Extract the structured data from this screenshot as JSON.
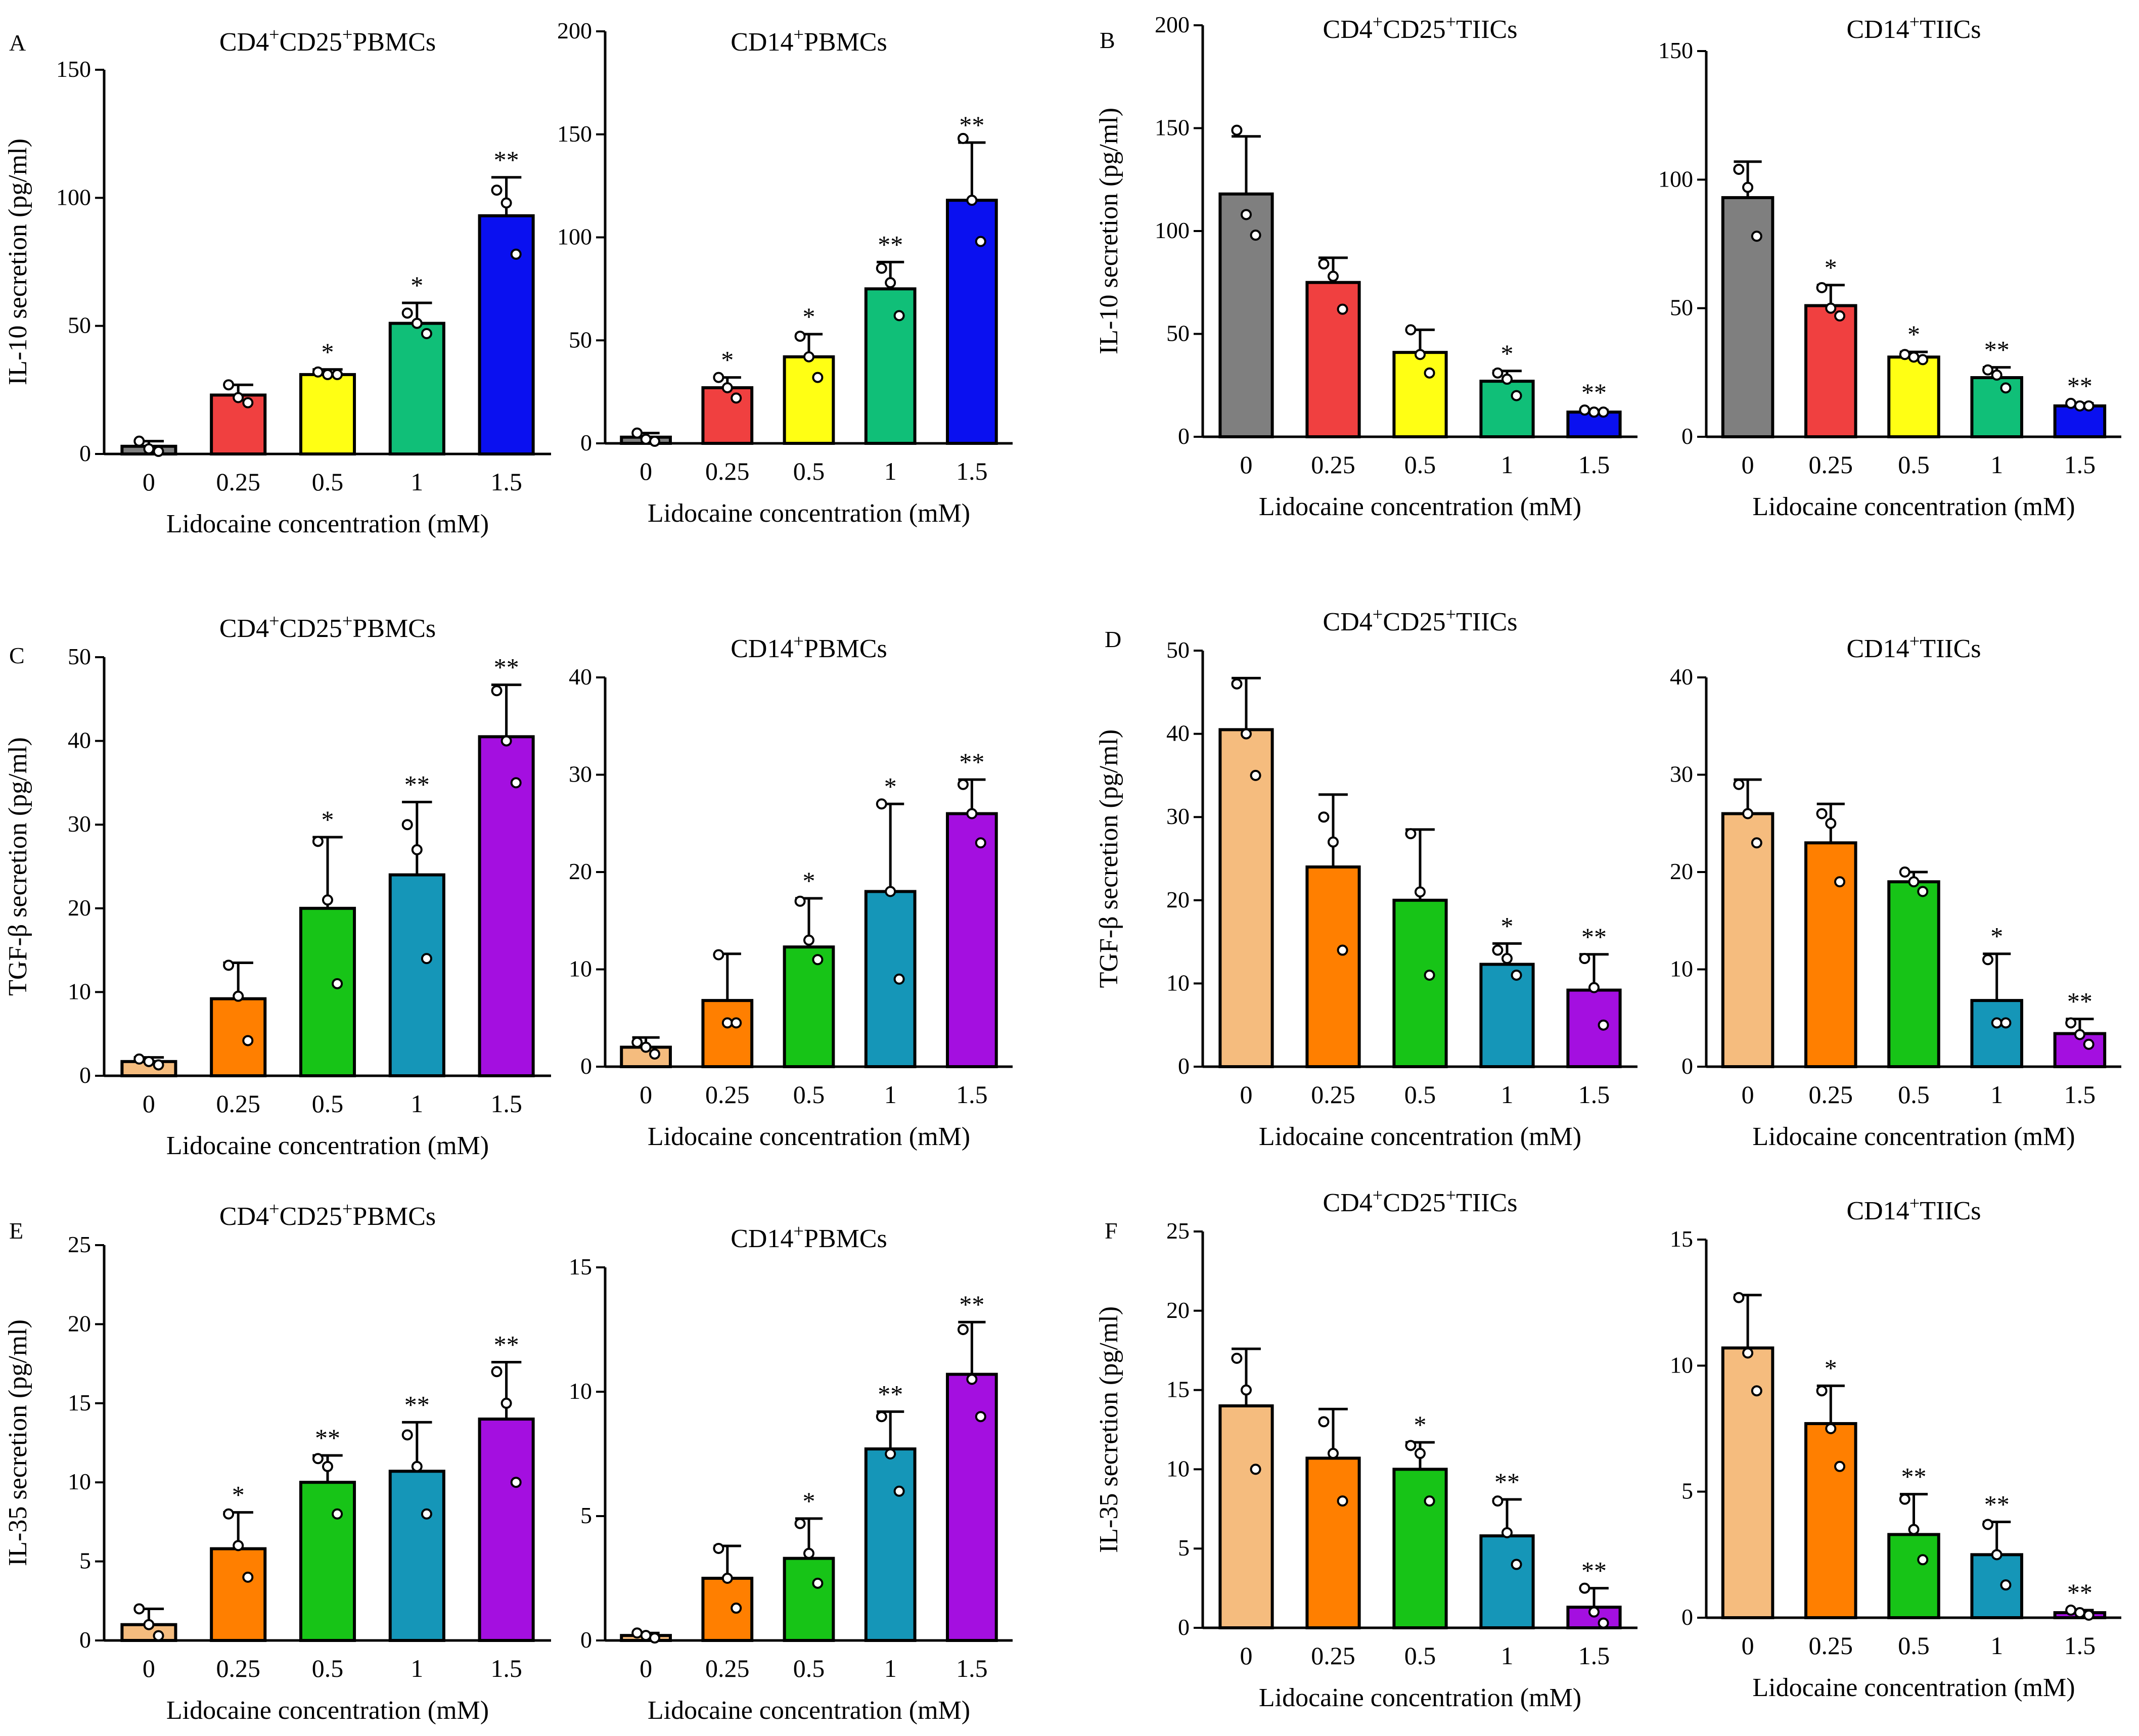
{
  "figure": {
    "xlabel": "Lidocaine concentration (mM)",
    "categories": [
      "0",
      "0.25",
      "0.5",
      "1",
      "1.5"
    ],
    "colors": {
      "set1": [
        "#7f7f7f",
        "#f04040",
        "#ffff14",
        "#10bf78",
        "#0a10f0"
      ],
      "set2": [
        "#f5bc7e",
        "#ff7f00",
        "#17c417",
        "#1596b8",
        "#a40fe0"
      ]
    }
  },
  "chart_data": [
    {
      "type": "bar",
      "panel": "A",
      "position": "A-left",
      "title": "CD4⁺CD25⁺PBMCs",
      "xlabel": "Lidocaine concentration (mM)",
      "ylabel": "IL-10 secretion (pg/ml)",
      "categories": [
        "0",
        "0.25",
        "0.5",
        "1",
        "1.5"
      ],
      "values": [
        3,
        23,
        31,
        51,
        93
      ],
      "errors": [
        2,
        4,
        2,
        8,
        15
      ],
      "points": [
        [
          5,
          2,
          1
        ],
        [
          27,
          22,
          20
        ],
        [
          32,
          31,
          31
        ],
        [
          55,
          51,
          47
        ],
        [
          103,
          98,
          78
        ]
      ],
      "significance": [
        "",
        "",
        "*",
        "*",
        "**"
      ],
      "ylim": [
        0,
        150
      ],
      "yticks": [
        0,
        50,
        100,
        150
      ],
      "palette": "set1"
    },
    {
      "type": "bar",
      "panel": "",
      "position": "A-right",
      "title": "CD14⁺PBMCs",
      "xlabel": "Lidocaine concentration (mM)",
      "ylabel": "",
      "categories": [
        "0",
        "0.25",
        "0.5",
        "1",
        "1.5"
      ],
      "values": [
        3,
        27,
        42,
        75,
        118
      ],
      "errors": [
        2,
        5,
        11,
        13,
        28
      ],
      "points": [
        [
          5,
          2,
          1
        ],
        [
          32,
          27,
          22
        ],
        [
          52,
          42,
          32
        ],
        [
          85,
          78,
          62
        ],
        [
          148,
          118,
          98
        ]
      ],
      "significance": [
        "",
        "*",
        "*",
        "**",
        "**"
      ],
      "ylim": [
        0,
        200
      ],
      "yticks": [
        0,
        50,
        100,
        150,
        200
      ],
      "palette": "set1"
    },
    {
      "type": "bar",
      "panel": "B",
      "position": "B-left",
      "title": "CD4⁺CD25⁺TIICs",
      "xlabel": "Lidocaine concentration (mM)",
      "ylabel": "IL-10 secretion (pg/ml)",
      "categories": [
        "0",
        "0.25",
        "0.5",
        "1",
        "1.5"
      ],
      "values": [
        118,
        75,
        41,
        27,
        12
      ],
      "errors": [
        28,
        12,
        11,
        5,
        1
      ],
      "points": [
        [
          149,
          108,
          98
        ],
        [
          84,
          78,
          62
        ],
        [
          52,
          40,
          31
        ],
        [
          31,
          28,
          20
        ],
        [
          13,
          12,
          12
        ]
      ],
      "significance": [
        "",
        "",
        "",
        "*",
        "**"
      ],
      "ylim": [
        0,
        200
      ],
      "yticks": [
        0,
        50,
        100,
        150,
        200
      ],
      "palette": "set1"
    },
    {
      "type": "bar",
      "panel": "",
      "position": "B-right",
      "title": "CD14⁺TIICs",
      "xlabel": "Lidocaine concentration (mM)",
      "ylabel": "",
      "categories": [
        "0",
        "0.25",
        "0.5",
        "1",
        "1.5"
      ],
      "values": [
        93,
        51,
        31,
        23,
        12
      ],
      "errors": [
        14,
        8,
        2,
        4,
        1
      ],
      "points": [
        [
          104,
          97,
          78
        ],
        [
          58,
          50,
          47
        ],
        [
          32,
          31,
          30
        ],
        [
          26,
          24,
          19
        ],
        [
          13,
          12,
          12
        ]
      ],
      "significance": [
        "",
        "*",
        "*",
        "**",
        "**"
      ],
      "ylim": [
        0,
        150
      ],
      "yticks": [
        0,
        50,
        100,
        150
      ],
      "palette": "set1"
    },
    {
      "type": "bar",
      "panel": "C",
      "position": "C-left",
      "title": "CD4⁺CD25⁺PBMCs",
      "xlabel": "Lidocaine concentration (mM)",
      "ylabel": "TGF-β secretion (pg/ml)",
      "categories": [
        "0",
        "0.25",
        "0.5",
        "1",
        "1.5"
      ],
      "values": [
        1.7,
        9.2,
        20,
        24,
        40.5
      ],
      "errors": [
        0.5,
        4.3,
        8.5,
        8.7,
        6.2
      ],
      "points": [
        [
          2.0,
          1.7,
          1.3
        ],
        [
          13.2,
          9.5,
          4.2
        ],
        [
          28.0,
          21.0,
          11.0
        ],
        [
          30.0,
          27.0,
          14.0
        ],
        [
          46.0,
          40.0,
          35.0
        ]
      ],
      "significance": [
        "",
        "",
        "*",
        "**",
        "**"
      ],
      "ylim": [
        0,
        50
      ],
      "yticks": [
        0,
        10,
        20,
        30,
        40,
        50
      ],
      "palette": "set2"
    },
    {
      "type": "bar",
      "panel": "",
      "position": "C-right",
      "title": "CD14⁺PBMCs",
      "xlabel": "Lidocaine concentration (mM)",
      "ylabel": "",
      "categories": [
        "0",
        "0.25",
        "0.5",
        "1",
        "1.5"
      ],
      "values": [
        2,
        6.8,
        12.3,
        18,
        26
      ],
      "errors": [
        1,
        4.8,
        5,
        9,
        3.5
      ],
      "points": [
        [
          2.5,
          2.0,
          1.3
        ],
        [
          11.5,
          4.5,
          4.5
        ],
        [
          17.0,
          13.0,
          11.0
        ],
        [
          27.0,
          18.0,
          9.0
        ],
        [
          29.0,
          26.0,
          23.0
        ]
      ],
      "significance": [
        "",
        "",
        "*",
        "*",
        "**"
      ],
      "ylim": [
        0,
        40
      ],
      "yticks": [
        0,
        10,
        20,
        30,
        40
      ],
      "palette": "set2"
    },
    {
      "type": "bar",
      "panel": "D",
      "position": "D-left",
      "title": "CD4⁺CD25⁺TIICs",
      "xlabel": "Lidocaine concentration (mM)",
      "ylabel": "TGF-β secretion (pg/ml)",
      "categories": [
        "0",
        "0.25",
        "0.5",
        "1",
        "1.5"
      ],
      "values": [
        40.5,
        24,
        20,
        12.3,
        9.2
      ],
      "errors": [
        6.2,
        8.7,
        8.5,
        2.5,
        4.3
      ],
      "points": [
        [
          46.0,
          40.0,
          35.0
        ],
        [
          30.0,
          27.0,
          14.0
        ],
        [
          28.0,
          21.0,
          11.0
        ],
        [
          14.0,
          13.0,
          11.0
        ],
        [
          13.0,
          9.5,
          5.0
        ]
      ],
      "significance": [
        "",
        "",
        "",
        "*",
        "**"
      ],
      "ylim": [
        0,
        50
      ],
      "yticks": [
        0,
        10,
        20,
        30,
        40,
        50
      ],
      "palette": "set2"
    },
    {
      "type": "bar",
      "panel": "",
      "position": "D-right",
      "title": "CD14⁺TIICs",
      "xlabel": "Lidocaine concentration (mM)",
      "ylabel": "",
      "categories": [
        "0",
        "0.25",
        "0.5",
        "1",
        "1.5"
      ],
      "values": [
        26,
        23,
        19,
        6.8,
        3.4
      ],
      "errors": [
        3.5,
        4,
        1,
        4.8,
        1.5
      ],
      "points": [
        [
          29.0,
          26.0,
          23.0
        ],
        [
          26.0,
          25.0,
          19.0
        ],
        [
          20.0,
          19.0,
          18.0
        ],
        [
          11.0,
          4.5,
          4.5
        ],
        [
          4.5,
          3.3,
          2.3
        ]
      ],
      "significance": [
        "",
        "",
        "",
        "*",
        "**"
      ],
      "ylim": [
        0,
        40
      ],
      "yticks": [
        0,
        10,
        20,
        30,
        40
      ],
      "palette": "set2"
    },
    {
      "type": "bar",
      "panel": "E",
      "position": "E-left",
      "title": "CD4⁺CD25⁺PBMCs",
      "xlabel": "Lidocaine concentration (mM)",
      "ylabel": "IL-35 secretion (pg/ml)",
      "categories": [
        "0",
        "0.25",
        "0.5",
        "1",
        "1.5"
      ],
      "values": [
        1,
        5.8,
        10,
        10.7,
        14
      ],
      "errors": [
        1,
        2.3,
        1.7,
        3.1,
        3.6
      ],
      "points": [
        [
          2.0,
          1.0,
          0.3
        ],
        [
          8.0,
          6.0,
          4.0
        ],
        [
          11.5,
          11.0,
          8.0
        ],
        [
          13.0,
          11.0,
          8.0
        ],
        [
          17.0,
          15.0,
          10.0
        ]
      ],
      "significance": [
        "",
        "*",
        "**",
        "**",
        "**"
      ],
      "ylim": [
        0,
        25
      ],
      "yticks": [
        0,
        5,
        10,
        15,
        20,
        25
      ],
      "palette": "set2"
    },
    {
      "type": "bar",
      "panel": "",
      "position": "E-right",
      "title": "CD14⁺PBMCs",
      "xlabel": "Lidocaine concentration (mM)",
      "ylabel": "",
      "categories": [
        "0",
        "0.25",
        "0.5",
        "1",
        "1.5"
      ],
      "values": [
        0.2,
        2.5,
        3.3,
        7.7,
        10.7
      ],
      "errors": [
        0.1,
        1.3,
        1.6,
        1.5,
        2.1
      ],
      "points": [
        [
          0.3,
          0.2,
          0.1
        ],
        [
          3.7,
          2.5,
          1.3
        ],
        [
          4.7,
          3.5,
          2.3
        ],
        [
          9.0,
          7.5,
          6.0
        ],
        [
          12.5,
          10.5,
          9.0
        ]
      ],
      "significance": [
        "",
        "",
        "*",
        "**",
        "**"
      ],
      "ylim": [
        0,
        15
      ],
      "yticks": [
        0,
        5,
        10,
        15
      ],
      "palette": "set2"
    },
    {
      "type": "bar",
      "panel": "F",
      "position": "F-left",
      "title": "CD4⁺CD25⁺TIICs",
      "xlabel": "Lidocaine concentration (mM)",
      "ylabel": "IL-35 secretion (pg/ml)",
      "categories": [
        "0",
        "0.25",
        "0.5",
        "1",
        "1.5"
      ],
      "values": [
        14,
        10.7,
        10,
        5.8,
        1.3
      ],
      "errors": [
        3.6,
        3.1,
        1.7,
        2.3,
        1.2
      ],
      "points": [
        [
          17.0,
          15.0,
          10.0
        ],
        [
          13.0,
          11.0,
          8.0
        ],
        [
          11.5,
          11.0,
          8.0
        ],
        [
          8.0,
          6.0,
          4.0
        ],
        [
          2.5,
          1.0,
          0.3
        ]
      ],
      "significance": [
        "",
        "",
        "*",
        "**",
        "**"
      ],
      "ylim": [
        0,
        25
      ],
      "yticks": [
        0,
        5,
        10,
        15,
        20,
        25
      ],
      "palette": "set2"
    },
    {
      "type": "bar",
      "panel": "",
      "position": "F-right",
      "title": "CD14⁺TIICs",
      "xlabel": "Lidocaine concentration (mM)",
      "ylabel": "",
      "categories": [
        "0",
        "0.25",
        "0.5",
        "1",
        "1.5"
      ],
      "values": [
        10.7,
        7.7,
        3.3,
        2.5,
        0.2
      ],
      "errors": [
        2.1,
        1.5,
        1.6,
        1.3,
        0.1
      ],
      "points": [
        [
          12.7,
          10.5,
          9.0
        ],
        [
          9.0,
          7.5,
          6.0
        ],
        [
          4.7,
          3.5,
          2.3
        ],
        [
          3.7,
          2.5,
          1.3
        ],
        [
          0.3,
          0.2,
          0.1
        ]
      ],
      "significance": [
        "",
        "*",
        "**",
        "**",
        "**"
      ],
      "ylim": [
        0,
        15
      ],
      "yticks": [
        0,
        5,
        10,
        15
      ],
      "palette": "set2"
    }
  ]
}
